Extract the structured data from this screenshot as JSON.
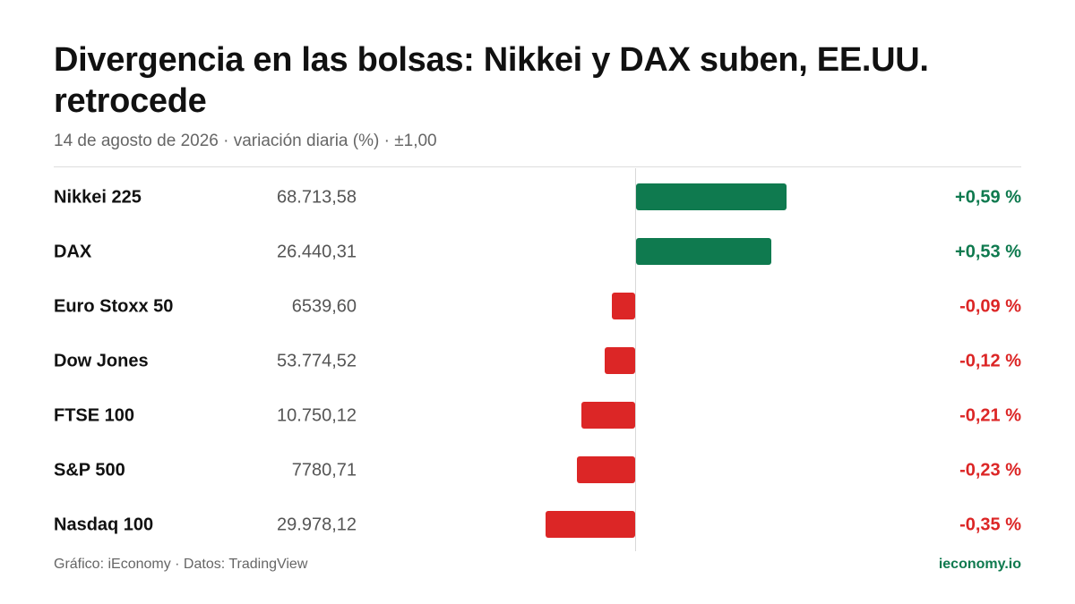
{
  "header": {
    "title": "Divergencia en las bolsas: Nikkei y DAX suben, EE.UU. retrocede",
    "subtitle": "14 de agosto de 2026 · variación diaria (%) · ±1,00"
  },
  "colors": {
    "positive": "#0f7a4f",
    "negative": "#dc2626"
  },
  "chart_data": {
    "type": "bar",
    "orientation": "horizontal",
    "xlim": [
      -1.0,
      1.0
    ],
    "grid": false,
    "legend": "none",
    "rows": [
      {
        "name": "Nikkei 225",
        "price": "68.713,58",
        "value": 0.59,
        "label": "+0,59 %"
      },
      {
        "name": "DAX",
        "price": "26.440,31",
        "value": 0.53,
        "label": "+0,53 %"
      },
      {
        "name": "Euro Stoxx 50",
        "price": "6539,60",
        "value": -0.09,
        "label": "-0,09 %"
      },
      {
        "name": "Dow Jones",
        "price": "53.774,52",
        "value": -0.12,
        "label": "-0,12 %"
      },
      {
        "name": "FTSE 100",
        "price": "10.750,12",
        "value": -0.21,
        "label": "-0,21 %"
      },
      {
        "name": "S&P 500",
        "price": "7780,71",
        "value": -0.23,
        "label": "-0,23 %"
      },
      {
        "name": "Nasdaq 100",
        "price": "29.978,12",
        "value": -0.35,
        "label": "-0,35 %"
      }
    ]
  },
  "footer": {
    "credit": "Gráfico: iEconomy · Datos: TradingView",
    "site": "ieconomy.io"
  }
}
